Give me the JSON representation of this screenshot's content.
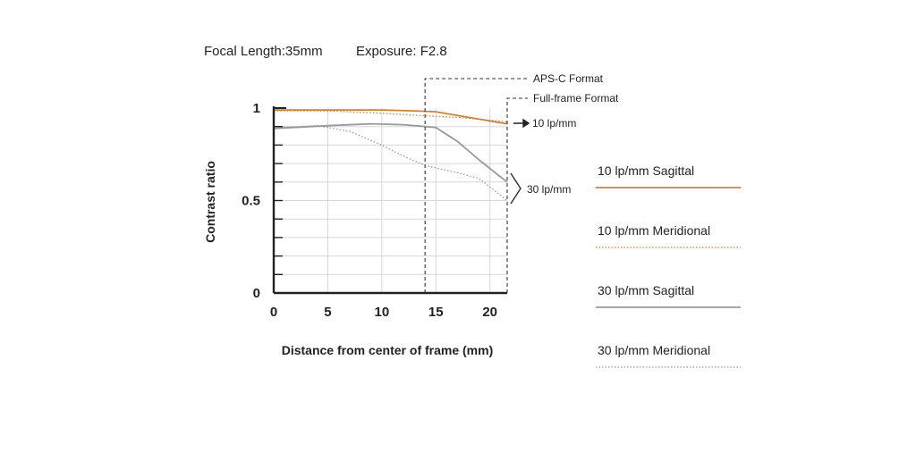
{
  "header": {
    "focal": "Focal Length:35mm",
    "exposure": "Exposure: F2.8"
  },
  "chart_data": {
    "type": "line",
    "xlabel": "Distance from center of frame (mm)",
    "ylabel": "Contrast ratio",
    "xlim": [
      0,
      21.6
    ],
    "ylim": [
      0,
      1
    ],
    "xticks": [
      "0",
      "5",
      "10",
      "15",
      "20"
    ],
    "yticks": [
      "0",
      "0.5",
      "1"
    ],
    "grid": true,
    "series": [
      {
        "name": "10 lp/mm Sagittal",
        "color": "#c8843f",
        "style": "solid",
        "points": [
          [
            0,
            0.99
          ],
          [
            5,
            0.99
          ],
          [
            10,
            0.99
          ],
          [
            13,
            0.985
          ],
          [
            15,
            0.98
          ],
          [
            17,
            0.96
          ],
          [
            19,
            0.94
          ],
          [
            20.5,
            0.925
          ],
          [
            21.6,
            0.915
          ]
        ]
      },
      {
        "name": "10 lp/mm Meridional",
        "color": "#c8843f",
        "style": "dotted",
        "points": [
          [
            0,
            0.985
          ],
          [
            5,
            0.985
          ],
          [
            9,
            0.975
          ],
          [
            12,
            0.965
          ],
          [
            15,
            0.955
          ],
          [
            17,
            0.95
          ],
          [
            19,
            0.94
          ],
          [
            21.6,
            0.925
          ]
        ]
      },
      {
        "name": "30 lp/mm Sagittal",
        "color": "#999999",
        "style": "solid",
        "points": [
          [
            0,
            0.89
          ],
          [
            5,
            0.905
          ],
          [
            9,
            0.915
          ],
          [
            12,
            0.91
          ],
          [
            15,
            0.895
          ],
          [
            17,
            0.82
          ],
          [
            19,
            0.72
          ],
          [
            20.5,
            0.65
          ],
          [
            21.6,
            0.6
          ]
        ]
      },
      {
        "name": "30 lp/mm Meridional",
        "color": "#999999",
        "style": "dotted",
        "points": [
          [
            0,
            0.895
          ],
          [
            4,
            0.905
          ],
          [
            7,
            0.875
          ],
          [
            10,
            0.8
          ],
          [
            12,
            0.74
          ],
          [
            14,
            0.69
          ],
          [
            17,
            0.65
          ],
          [
            19,
            0.62
          ],
          [
            20.5,
            0.55
          ],
          [
            21.6,
            0.5
          ]
        ]
      }
    ],
    "annotations": {
      "apsc": {
        "label": "APS-C Format",
        "x": 14
      },
      "fullframe": {
        "label": "Full-frame Format",
        "x": 21.6
      },
      "lp10": "10 lp/mm",
      "lp30": "30 lp/mm"
    },
    "legend_position": "right"
  }
}
